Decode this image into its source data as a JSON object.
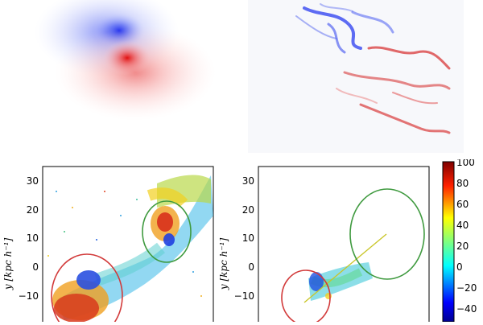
{
  "top_panels": {
    "left": {
      "description_colors": {
        "blue": "#2a3cf0",
        "red": "#e01818"
      }
    },
    "right": {
      "description_colors": {
        "blue": "#2a3cf0",
        "red": "#d41a1a"
      }
    }
  },
  "bottom_left_plot": {
    "ylabel": "y [kpc h⁻¹]",
    "yticks": [
      "30",
      "20",
      "10",
      "0",
      "−10"
    ],
    "circles": [
      {
        "color": "#d23a3a"
      },
      {
        "color": "#3f9a3f"
      }
    ]
  },
  "bottom_right_plot": {
    "ylabel": "y [kpc h⁻¹]",
    "yticks": [
      "30",
      "20",
      "10",
      "0",
      "−10"
    ],
    "circles": [
      {
        "color": "#d23a3a"
      },
      {
        "color": "#3f9a3f"
      }
    ],
    "line_color": "#c9c62a"
  },
  "colorbar": {
    "ticks": [
      "100",
      "80",
      "60",
      "40",
      "20",
      "0",
      "−20",
      "−40"
    ],
    "range": [
      -50,
      100
    ]
  }
}
